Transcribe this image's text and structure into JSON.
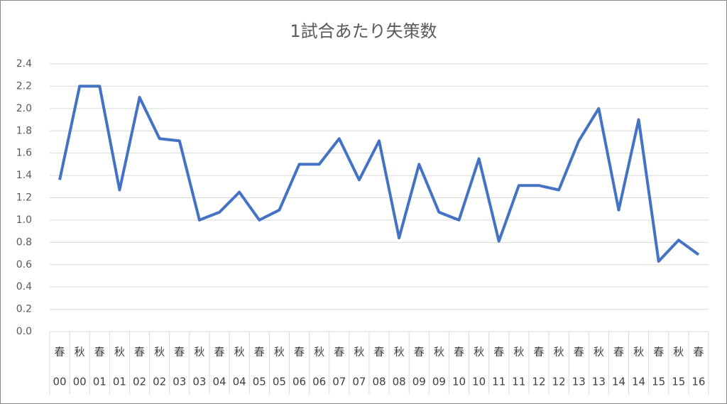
{
  "chart_data": {
    "type": "line",
    "title": "1試合あたり失策数",
    "categories": [
      [
        "春",
        "00"
      ],
      [
        "秋",
        "00"
      ],
      [
        "春",
        "01"
      ],
      [
        "秋",
        "01"
      ],
      [
        "春",
        "02"
      ],
      [
        "秋",
        "02"
      ],
      [
        "春",
        "03"
      ],
      [
        "秋",
        "03"
      ],
      [
        "春",
        "04"
      ],
      [
        "秋",
        "04"
      ],
      [
        "春",
        "05"
      ],
      [
        "秋",
        "05"
      ],
      [
        "春",
        "06"
      ],
      [
        "秋",
        "06"
      ],
      [
        "春",
        "07"
      ],
      [
        "秋",
        "07"
      ],
      [
        "春",
        "08"
      ],
      [
        "秋",
        "08"
      ],
      [
        "春",
        "09"
      ],
      [
        "秋",
        "09"
      ],
      [
        "春",
        "10"
      ],
      [
        "秋",
        "10"
      ],
      [
        "春",
        "11"
      ],
      [
        "秋",
        "11"
      ],
      [
        "春",
        "12"
      ],
      [
        "秋",
        "12"
      ],
      [
        "春",
        "13"
      ],
      [
        "秋",
        "13"
      ],
      [
        "春",
        "14"
      ],
      [
        "秋",
        "14"
      ],
      [
        "春",
        "15"
      ],
      [
        "秋",
        "15"
      ],
      [
        "春",
        "16"
      ]
    ],
    "values": [
      1.36,
      2.2,
      2.2,
      1.27,
      2.1,
      1.73,
      1.71,
      1.0,
      1.07,
      1.25,
      1.0,
      1.09,
      1.5,
      1.5,
      1.73,
      1.36,
      1.71,
      0.84,
      1.5,
      1.07,
      1.0,
      1.55,
      0.81,
      1.31,
      1.31,
      1.27,
      1.71,
      2.0,
      1.09,
      1.9,
      0.63,
      0.82,
      0.69
    ],
    "color": "#4472c4",
    "ylim": [
      0,
      2.4
    ],
    "yticks": [
      {
        "value": 0,
        "label": "0.0"
      },
      0.2,
      0.4,
      0.6,
      0.8,
      {
        "value": 1,
        "label": "1.0"
      },
      1.2,
      1.4,
      1.6,
      1.8,
      {
        "value": 2,
        "label": "2.0"
      },
      2.2,
      2.4
    ],
    "grid": true
  }
}
